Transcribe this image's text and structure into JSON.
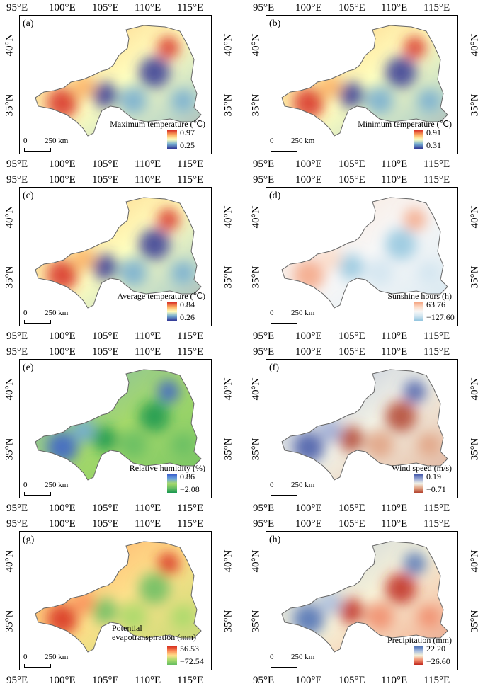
{
  "lon_ticks": [
    "95°E",
    "100°E",
    "105°E",
    "110°E",
    "115°E"
  ],
  "lat_ticks": [
    "40°N",
    "35°N"
  ],
  "scale": {
    "zero": "0",
    "km": "250 km"
  },
  "panels": [
    {
      "label": "(a)",
      "title": "Maximum temperature (℃)",
      "max": "0.97",
      "min": "0.25",
      "colors": [
        "#d73027",
        "#fdae61",
        "#ffffbf",
        "#74add1",
        "#313695"
      ]
    },
    {
      "label": "(b)",
      "title": "Minimum temperature (℃)",
      "max": "0.91",
      "min": "0.31",
      "colors": [
        "#d73027",
        "#fdae61",
        "#ffffbf",
        "#74add1",
        "#313695"
      ]
    },
    {
      "label": "(c)",
      "title": "Average temperature (℃)",
      "max": "0.84",
      "min": "0.26",
      "colors": [
        "#d73027",
        "#fdae61",
        "#ffffbf",
        "#74add1",
        "#313695"
      ]
    },
    {
      "label": "(d)",
      "title": "Sunshine hours (h)",
      "max": "63.76",
      "min": "−127.60",
      "colors": [
        "#f4a582",
        "#fddbc7",
        "#f7f7f7",
        "#d1e5f0",
        "#92c5de"
      ]
    },
    {
      "label": "(e)",
      "title": "Relative humidity (%)",
      "max": "0.86",
      "min": "−2.08",
      "colors": [
        "#3a5fcd",
        "#6fa8dc",
        "#a6d96a",
        "#66bd63",
        "#1a9850"
      ]
    },
    {
      "label": "(f)",
      "title": "Wind speed (m/s)",
      "max": "0.19",
      "min": "−0.71",
      "colors": [
        "#4357a8",
        "#9aa9d6",
        "#f2f2e6",
        "#e0a080",
        "#b2432f"
      ]
    },
    {
      "label": "(g)",
      "title": "Potential evapotranspiration (mm)",
      "max": "56.53",
      "min": "−72.54",
      "colors": [
        "#d7301f",
        "#fc8d59",
        "#fee08b",
        "#a6d96a",
        "#66bd63"
      ]
    },
    {
      "label": "(h)",
      "title": "Precipitation (mm)",
      "max": "22.20",
      "min": "−26.60",
      "colors": [
        "#4a6fb5",
        "#a8bde0",
        "#f7f2d8",
        "#f08a6a",
        "#c0281e"
      ]
    }
  ]
}
